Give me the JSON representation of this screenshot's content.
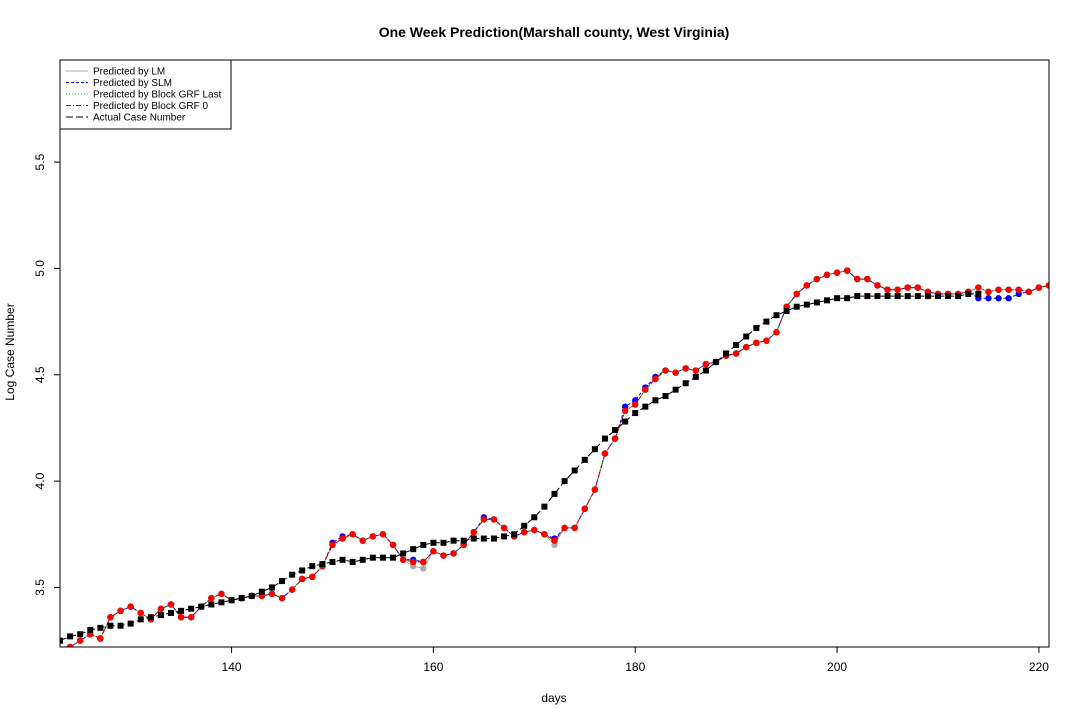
{
  "chart_data": {
    "type": "line",
    "title": "One Week Prediction(Marshall county, West Virginia)",
    "xlabel": "days",
    "ylabel": "Log Case Number",
    "xlim": [
      123,
      221
    ],
    "ylim": [
      3.22,
      5.98
    ],
    "xticks": [
      140,
      160,
      180,
      200,
      220
    ],
    "yticks": [
      3.5,
      4.0,
      4.5,
      5.0,
      5.5
    ],
    "grid": false,
    "legend_position": "top-left",
    "legend": [
      {
        "label": "Predicted by LM",
        "color": "#aaaaaa",
        "dash": ""
      },
      {
        "label": "Predicted by SLM",
        "color": "#0000ff",
        "dash": "3,2"
      },
      {
        "label": "Predicted by Block GRF Last",
        "color": "#00cc00",
        "dash": "1,2"
      },
      {
        "label": "Predicted by Block GRF 0",
        "color": "#cc0000",
        "dash": "5,2,1,2"
      },
      {
        "label": "Actual Case Number",
        "color": "#000000",
        "dash": "7,3"
      }
    ],
    "x": [
      123,
      124,
      125,
      126,
      127,
      128,
      129,
      130,
      131,
      132,
      133,
      134,
      135,
      136,
      137,
      138,
      139,
      140,
      141,
      142,
      143,
      144,
      145,
      146,
      147,
      148,
      149,
      150,
      151,
      152,
      153,
      154,
      155,
      156,
      157,
      158,
      159,
      160,
      161,
      162,
      163,
      164,
      165,
      166,
      167,
      168,
      169,
      170,
      171,
      172,
      173,
      174,
      175,
      176,
      177,
      178,
      179,
      180,
      181,
      182,
      183,
      184,
      185,
      186,
      187,
      188,
      189,
      190,
      191,
      192,
      193,
      194,
      195,
      196,
      197,
      198,
      199,
      200,
      201,
      202,
      203,
      204,
      205,
      206,
      207,
      208,
      209,
      210,
      211,
      212,
      213,
      214,
      215,
      216,
      217,
      218,
      219,
      220,
      221
    ],
    "series": [
      {
        "name": "Actual Case Number",
        "color": "#000000",
        "marker": "square",
        "values": [
          3.25,
          3.27,
          3.28,
          3.3,
          3.31,
          3.32,
          3.32,
          3.33,
          3.35,
          3.36,
          3.37,
          3.38,
          3.39,
          3.4,
          3.41,
          3.42,
          3.43,
          3.44,
          3.45,
          3.46,
          3.48,
          3.5,
          3.53,
          3.56,
          3.58,
          3.6,
          3.61,
          3.62,
          3.63,
          3.62,
          3.63,
          3.64,
          3.64,
          3.64,
          3.66,
          3.68,
          3.7,
          3.71,
          3.71,
          3.72,
          3.72,
          3.73,
          3.73,
          3.73,
          3.74,
          3.75,
          3.79,
          3.83,
          3.88,
          3.94,
          4.0,
          4.05,
          4.1,
          4.15,
          4.2,
          4.24,
          4.28,
          4.32,
          4.35,
          4.38,
          4.4,
          4.43,
          4.46,
          4.49,
          4.52,
          4.56,
          4.6,
          4.64,
          4.68,
          4.72,
          4.75,
          4.78,
          4.8,
          4.82,
          4.83,
          4.84,
          4.85,
          4.86,
          4.86,
          4.87,
          4.87,
          4.87,
          4.87,
          4.87,
          4.87,
          4.87,
          4.87,
          4.87,
          4.87,
          4.87,
          4.88,
          4.88,
          null,
          null,
          null,
          null,
          null,
          null,
          null
        ]
      },
      {
        "name": "Predicted by LM",
        "color": "#aaaaaa",
        "marker": "circle",
        "values": [
          null,
          3.22,
          3.25,
          3.28,
          3.26,
          3.36,
          3.39,
          3.41,
          3.38,
          3.35,
          3.4,
          3.42,
          3.36,
          3.36,
          3.41,
          3.45,
          3.47,
          3.44,
          3.45,
          3.46,
          3.46,
          3.47,
          3.45,
          3.49,
          3.54,
          3.55,
          3.6,
          3.7,
          3.73,
          3.75,
          3.72,
          3.74,
          3.75,
          3.7,
          3.63,
          3.6,
          3.59,
          3.67,
          3.65,
          3.66,
          3.7,
          3.76,
          3.82,
          3.82,
          3.78,
          3.74,
          3.76,
          3.77,
          3.75,
          3.7,
          3.78,
          3.78,
          3.87,
          3.96,
          4.13,
          4.2,
          4.33,
          4.36,
          4.43,
          4.49,
          4.52,
          4.51,
          4.53,
          4.52,
          4.55,
          4.56,
          4.59,
          4.6,
          4.63,
          4.65,
          4.66,
          4.7,
          4.82,
          4.88,
          4.92,
          4.95,
          4.97,
          4.98,
          4.99,
          4.95,
          4.95,
          4.92,
          4.9,
          4.9,
          4.91,
          4.91,
          4.89,
          4.88,
          4.88,
          4.88,
          4.89,
          4.91,
          4.89,
          4.9,
          4.9,
          4.9,
          4.89,
          4.91,
          4.92
        ]
      },
      {
        "name": "Predicted by SLM",
        "color": "#0000ff",
        "marker": "circle",
        "values": [
          null,
          3.22,
          3.25,
          3.28,
          3.26,
          3.36,
          3.39,
          3.41,
          3.38,
          3.35,
          3.4,
          3.42,
          3.36,
          3.36,
          3.41,
          3.45,
          3.47,
          3.44,
          3.45,
          3.46,
          3.46,
          3.47,
          3.45,
          3.49,
          3.54,
          3.55,
          3.6,
          3.71,
          3.74,
          3.75,
          3.72,
          3.74,
          3.75,
          3.7,
          3.63,
          3.63,
          3.62,
          3.67,
          3.65,
          3.66,
          3.7,
          3.76,
          3.83,
          3.82,
          3.78,
          3.74,
          3.76,
          3.77,
          3.75,
          3.73,
          3.78,
          3.78,
          3.87,
          3.96,
          4.13,
          4.2,
          4.35,
          4.38,
          4.44,
          4.49,
          4.52,
          4.51,
          4.53,
          4.52,
          4.55,
          4.56,
          4.59,
          4.6,
          4.63,
          4.65,
          4.66,
          4.7,
          4.82,
          4.88,
          4.92,
          4.95,
          4.97,
          4.98,
          4.99,
          4.95,
          4.95,
          4.92,
          4.9,
          4.9,
          4.91,
          4.91,
          4.89,
          4.88,
          4.88,
          4.88,
          4.89,
          4.86,
          4.86,
          4.86,
          4.86,
          4.88,
          4.89,
          4.91,
          4.92
        ]
      },
      {
        "name": "Predicted by Block GRF Last",
        "color": "#00cc00",
        "marker": "circle",
        "values": [
          null,
          3.22,
          3.25,
          3.28,
          3.26,
          3.36,
          3.39,
          3.41,
          3.38,
          3.35,
          3.4,
          3.42,
          3.36,
          3.36,
          3.41,
          3.45,
          3.47,
          3.44,
          3.45,
          3.46,
          3.46,
          3.47,
          3.45,
          3.49,
          3.54,
          3.55,
          3.6,
          3.7,
          3.73,
          3.75,
          3.72,
          3.74,
          3.75,
          3.7,
          3.63,
          3.62,
          3.62,
          3.67,
          3.65,
          3.66,
          3.7,
          3.76,
          3.82,
          3.82,
          3.78,
          3.74,
          3.76,
          3.77,
          3.75,
          3.72,
          3.78,
          3.78,
          3.87,
          3.96,
          4.13,
          4.2,
          4.33,
          4.36,
          4.43,
          4.48,
          4.52,
          4.51,
          4.53,
          4.52,
          4.55,
          4.56,
          4.59,
          4.6,
          4.63,
          4.65,
          4.66,
          4.7,
          4.82,
          4.88,
          4.92,
          4.95,
          4.97,
          4.98,
          4.99,
          4.95,
          4.95,
          4.92,
          4.9,
          4.9,
          4.91,
          4.91,
          4.89,
          4.88,
          4.88,
          4.88,
          4.89,
          4.91,
          4.89,
          4.9,
          4.9,
          4.9,
          4.89,
          4.91,
          4.92
        ]
      },
      {
        "name": "Predicted by Block GRF 0",
        "color": "#ff0000",
        "marker": "circle",
        "values": [
          null,
          3.22,
          3.25,
          3.28,
          3.26,
          3.36,
          3.39,
          3.41,
          3.38,
          3.35,
          3.4,
          3.42,
          3.36,
          3.36,
          3.41,
          3.45,
          3.47,
          3.44,
          3.45,
          3.46,
          3.46,
          3.47,
          3.45,
          3.49,
          3.54,
          3.55,
          3.6,
          3.7,
          3.73,
          3.75,
          3.72,
          3.74,
          3.75,
          3.7,
          3.63,
          3.62,
          3.62,
          3.67,
          3.65,
          3.66,
          3.7,
          3.76,
          3.82,
          3.82,
          3.78,
          3.74,
          3.76,
          3.77,
          3.75,
          3.72,
          3.78,
          3.78,
          3.87,
          3.96,
          4.13,
          4.2,
          4.33,
          4.36,
          4.43,
          4.48,
          4.52,
          4.51,
          4.53,
          4.52,
          4.55,
          4.56,
          4.59,
          4.6,
          4.63,
          4.65,
          4.66,
          4.7,
          4.82,
          4.88,
          4.92,
          4.95,
          4.97,
          4.98,
          4.99,
          4.95,
          4.95,
          4.92,
          4.9,
          4.9,
          4.91,
          4.91,
          4.89,
          4.88,
          4.88,
          4.88,
          4.89,
          4.91,
          4.89,
          4.9,
          4.9,
          4.9,
          4.89,
          4.91,
          4.92
        ]
      }
    ]
  }
}
